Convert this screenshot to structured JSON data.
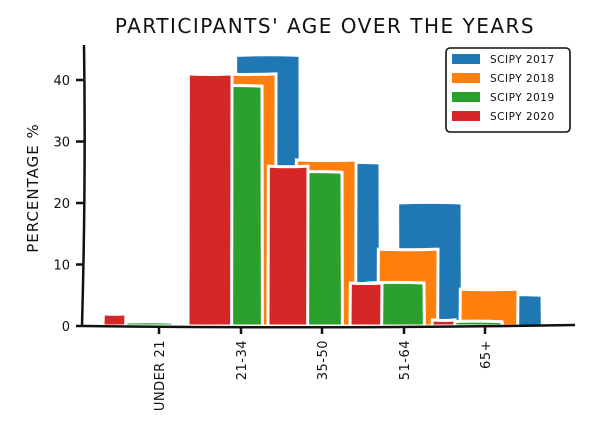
{
  "chart_data": {
    "type": "bar",
    "title": "PARTICIPANTS' AGE OVER THE YEARS",
    "xlabel": "",
    "ylabel": "PERCENTAGE %",
    "categories": [
      "UNDER 21",
      "21-34",
      "35-50",
      "51-64",
      "65+"
    ],
    "series": [
      {
        "name": "SCIPY 2017",
        "color": "#1f77b4",
        "values": [
          0.3,
          44,
          26.5,
          20,
          5
        ]
      },
      {
        "name": "SCIPY 2018",
        "color": "#ff7f0e",
        "values": [
          0.5,
          41,
          27,
          12.5,
          6
        ]
      },
      {
        "name": "SCIPY 2019",
        "color": "#2ca02c",
        "values": [
          0.6,
          39,
          25,
          7,
          0.7
        ]
      },
      {
        "name": "SCIPY 2020",
        "color": "#d62728",
        "values": [
          2,
          41,
          26,
          7,
          1
        ]
      }
    ],
    "yticks": [
      0,
      10,
      20,
      30,
      40
    ],
    "ylim": [
      0,
      46
    ],
    "grid": false,
    "legend": "top-right"
  }
}
